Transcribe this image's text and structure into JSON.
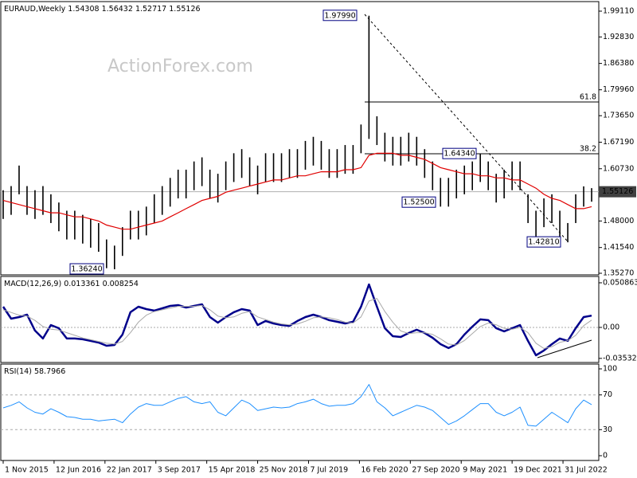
{
  "watermark": "ActionForex.com",
  "chart_data": [
    {
      "type": "range",
      "title": "EURAUD,Weekly",
      "ohlc": [
        1.54308,
        1.56432,
        1.52717,
        1.55126
      ],
      "x": [
        0,
        5,
        10,
        15,
        20,
        25,
        30,
        35,
        40,
        45,
        50,
        55,
        60,
        65,
        70,
        75,
        80,
        85,
        90,
        95,
        100,
        105,
        110,
        115,
        120,
        125,
        130,
        135,
        140,
        145,
        150,
        155,
        160,
        165,
        170,
        175,
        180,
        185,
        190,
        195,
        200,
        205,
        210,
        215,
        220,
        225,
        230,
        235,
        240,
        245,
        250,
        255,
        260,
        265,
        270,
        275,
        280,
        285,
        290,
        295,
        300,
        305,
        310,
        315,
        320,
        325,
        330,
        335,
        340,
        345,
        350,
        355,
        360,
        365,
        370
      ],
      "xlim": [
        -1.5,
        374.5
      ],
      "xticks": [
        {
          "value": 0,
          "label": "1 Nov 2015"
        },
        {
          "value": 32,
          "label": "12 Jun 2016"
        },
        {
          "value": 64,
          "label": "22 Jan 2017"
        },
        {
          "value": 96,
          "label": "3 Sep 2017"
        },
        {
          "value": 128,
          "label": "15 Apr 2018"
        },
        {
          "value": 160,
          "label": "25 Nov 2018"
        },
        {
          "value": 192,
          "label": "7 Jul 2019"
        },
        {
          "value": 224,
          "label": "16 Feb 2020"
        },
        {
          "value": 256,
          "label": "27 Sep 2020"
        },
        {
          "value": 288,
          "label": "9 May 2021"
        },
        {
          "value": 320,
          "label": "19 Dec 2021"
        },
        {
          "value": 352,
          "label": "31 Jul 2022"
        }
      ],
      "price": {
        "color": "#000000",
        "high": [
          1.555,
          1.565,
          1.615,
          1.565,
          1.555,
          1.565,
          1.545,
          1.525,
          1.505,
          1.505,
          1.495,
          1.485,
          1.475,
          1.435,
          1.42,
          1.465,
          1.505,
          1.505,
          1.515,
          1.545,
          1.565,
          1.585,
          1.605,
          1.605,
          1.625,
          1.635,
          1.605,
          1.595,
          1.625,
          1.645,
          1.655,
          1.635,
          1.615,
          1.645,
          1.645,
          1.645,
          1.655,
          1.655,
          1.675,
          1.685,
          1.675,
          1.655,
          1.655,
          1.665,
          1.665,
          1.715,
          1.9799,
          1.735,
          1.695,
          1.685,
          1.685,
          1.695,
          1.685,
          1.655,
          1.625,
          1.585,
          1.585,
          1.605,
          1.615,
          1.625,
          1.6434,
          1.625,
          1.595,
          1.605,
          1.625,
          1.625,
          1.545,
          1.505,
          1.535,
          1.545,
          1.505,
          1.475,
          1.545,
          1.5643,
          1.56
        ],
        "low": [
          1.485,
          1.495,
          1.545,
          1.495,
          1.485,
          1.495,
          1.475,
          1.455,
          1.435,
          1.435,
          1.425,
          1.415,
          1.405,
          1.365,
          1.3624,
          1.395,
          1.435,
          1.435,
          1.445,
          1.475,
          1.495,
          1.515,
          1.535,
          1.535,
          1.555,
          1.565,
          1.535,
          1.525,
          1.555,
          1.575,
          1.585,
          1.565,
          1.545,
          1.575,
          1.575,
          1.575,
          1.585,
          1.585,
          1.605,
          1.615,
          1.605,
          1.585,
          1.585,
          1.595,
          1.595,
          1.645,
          1.68,
          1.665,
          1.625,
          1.615,
          1.615,
          1.625,
          1.615,
          1.585,
          1.555,
          1.515,
          1.515,
          1.535,
          1.545,
          1.555,
          1.575,
          1.555,
          1.525,
          1.535,
          1.555,
          1.555,
          1.475,
          1.435,
          1.465,
          1.475,
          1.435,
          1.4281,
          1.475,
          1.515,
          1.527
        ]
      },
      "ma": {
        "color": "#e00000",
        "values": [
          1.53,
          1.525,
          1.52,
          1.515,
          1.51,
          1.505,
          1.5,
          1.5,
          1.495,
          1.49,
          1.49,
          1.485,
          1.48,
          1.47,
          1.465,
          1.46,
          1.46,
          1.465,
          1.47,
          1.475,
          1.48,
          1.49,
          1.5,
          1.51,
          1.52,
          1.53,
          1.535,
          1.54,
          1.55,
          1.555,
          1.56,
          1.565,
          1.57,
          1.575,
          1.58,
          1.58,
          1.585,
          1.59,
          1.59,
          1.595,
          1.6,
          1.6,
          1.6,
          1.605,
          1.605,
          1.61,
          1.64,
          1.645,
          1.645,
          1.645,
          1.64,
          1.64,
          1.635,
          1.63,
          1.62,
          1.61,
          1.605,
          1.6,
          1.595,
          1.595,
          1.59,
          1.59,
          1.585,
          1.585,
          1.58,
          1.58,
          1.57,
          1.56,
          1.545,
          1.535,
          1.53,
          1.52,
          1.51,
          1.51,
          1.515
        ]
      },
      "last": 1.55126,
      "ylim": [
        1.3488,
        2.0144
      ],
      "yticks": [
        {
          "value": 1.9911,
          "label": "1.99110"
        },
        {
          "value": 1.9283,
          "label": "1.92830"
        },
        {
          "value": 1.8638,
          "label": "1.86380"
        },
        {
          "value": 1.7996,
          "label": "1.79960"
        },
        {
          "value": 1.7365,
          "label": "1.73650"
        },
        {
          "value": 1.6719,
          "label": "1.67190"
        },
        {
          "value": 1.6073,
          "label": "1.60730"
        },
        {
          "value": 1.48,
          "label": "1.48000"
        },
        {
          "value": 1.4154,
          "label": "1.41540"
        },
        {
          "value": 1.3527,
          "label": "1.35270"
        }
      ],
      "annotations": [
        {
          "value": 1.9799,
          "label": "1.97990"
        },
        {
          "value": 1.3624,
          "label": "1.36240"
        },
        {
          "value": 1.525,
          "label": "1.52500"
        },
        {
          "value": 1.6434,
          "label": "1.64340"
        },
        {
          "value": 1.4281,
          "label": "1.42810"
        }
      ],
      "fib_levels": [
        {
          "level": 61.8,
          "price": 1.7699
        },
        {
          "level": 38.2,
          "price": 1.6437
        }
      ]
    },
    {
      "type": "line",
      "title": "MACD(12,26,9)",
      "readout": [
        0.013361,
        0.008254
      ],
      "ylim": [
        -0.04,
        0.0581
      ],
      "yticks": [
        0.050863,
        {
          "value": 0,
          "label": "0.00"
        },
        -0.035322
      ],
      "zero_line": true,
      "series": [
        {
          "color": "#00008b",
          "width": 2.5,
          "values": [
            0.0236,
            0.01,
            0.0118,
            0.0145,
            -0.0036,
            -0.0127,
            0.0027,
            -0.0009,
            -0.0127,
            -0.0127,
            -0.0136,
            -0.0154,
            -0.0173,
            -0.0209,
            -0.02,
            -0.0082,
            0.0173,
            0.0236,
            0.0209,
            0.0191,
            0.0218,
            0.0245,
            0.0254,
            0.0227,
            0.0245,
            0.0263,
            0.0118,
            0.0054,
            0.0118,
            0.0173,
            0.0209,
            0.0191,
            0.0027,
            0.0073,
            0.0045,
            0.0027,
            0.0018,
            0.0073,
            0.0118,
            0.0145,
            0.0118,
            0.0082,
            0.0064,
            0.0045,
            0.0064,
            0.0236,
            0.049,
            0.0236,
            -0.0009,
            -0.01,
            -0.0109,
            -0.0064,
            -0.0027,
            -0.0064,
            -0.0118,
            -0.0191,
            -0.0236,
            -0.0191,
            -0.0082,
            0.0009,
            0.0091,
            0.0082,
            -0.0009,
            -0.0045,
            -0.0009,
            0.0027,
            -0.0154,
            -0.0318,
            -0.0263,
            -0.0191,
            -0.0127,
            -0.0154,
            -0.0009,
            0.0118,
            0.0134
          ]
        },
        {
          "color": "#a9a9a9",
          "width": 1,
          "values": [
            0.02,
            0.017,
            0.014,
            0.013,
            0.008,
            0.001,
            -0.002,
            -0.003,
            -0.006,
            -0.009,
            -0.012,
            -0.014,
            -0.016,
            -0.018,
            -0.019,
            -0.016,
            -0.006,
            0.006,
            0.014,
            0.018,
            0.02,
            0.022,
            0.024,
            0.024,
            0.024,
            0.025,
            0.02,
            0.013,
            0.011,
            0.012,
            0.016,
            0.018,
            0.012,
            0.009,
            0.006,
            0.004,
            0.003,
            0.004,
            0.007,
            0.011,
            0.012,
            0.011,
            0.009,
            0.006,
            0.005,
            0.012,
            0.03,
            0.033,
            0.018,
            0.006,
            -0.004,
            -0.007,
            -0.006,
            -0.006,
            -0.008,
            -0.013,
            -0.019,
            -0.02,
            -0.015,
            -0.007,
            0.001,
            0.005,
            0.003,
            -0.001,
            -0.002,
            0,
            -0.006,
            -0.018,
            -0.024,
            -0.022,
            -0.017,
            -0.015,
            -0.009,
            0.002,
            0.0083
          ]
        }
      ]
    },
    {
      "type": "line",
      "title": "RSI(14)",
      "readout": [
        58.7966
      ],
      "ylim": [
        -5.5,
        105.5
      ],
      "yticks": [
        100,
        70,
        30,
        0
      ],
      "levels": [
        70,
        30
      ],
      "series": [
        {
          "color": "#1e90ff",
          "width": 1,
          "values": [
            55,
            58,
            62,
            55,
            50,
            48,
            54,
            50,
            45,
            44,
            42,
            42,
            40,
            41,
            42,
            38,
            48,
            56,
            60,
            58,
            58,
            62,
            66,
            68,
            62,
            60,
            62,
            50,
            46,
            55,
            64,
            60,
            52,
            54,
            56,
            55,
            56,
            60,
            62,
            65,
            60,
            57,
            58,
            58,
            60,
            68,
            82,
            62,
            55,
            46,
            50,
            54,
            58,
            56,
            52,
            44,
            36,
            40,
            46,
            53,
            60,
            60,
            50,
            46,
            50,
            56,
            35,
            34,
            42,
            50,
            44,
            38,
            54,
            64,
            58.7966
          ]
        }
      ]
    }
  ]
}
